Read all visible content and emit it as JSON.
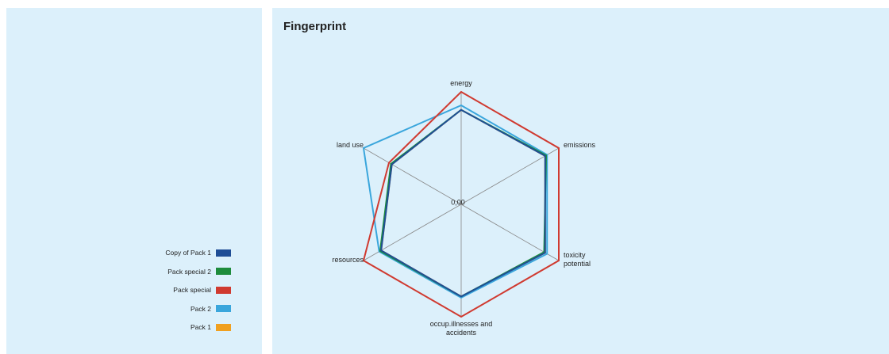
{
  "chart_data": {
    "type": "radar",
    "title": "Fingerprint",
    "categories": [
      "energy",
      "emissions",
      "toxicity potential",
      "occup.illnesses and accidents",
      "resources",
      "land use"
    ],
    "rlim": [
      0,
      1
    ],
    "rticks": [
      {
        "value": 0,
        "label": "0,00"
      }
    ],
    "series": [
      {
        "name": "Copy of Pack 1",
        "color": "#1f4e96",
        "values": [
          0.84,
          0.86,
          0.86,
          0.82,
          0.82,
          0.71
        ]
      },
      {
        "name": "Pack special 2",
        "color": "#1e8c3c",
        "values": [
          0.84,
          0.87,
          0.85,
          0.82,
          0.83,
          0.72
        ]
      },
      {
        "name": "Pack special",
        "color": "#d03a30",
        "values": [
          1,
          1,
          1,
          1,
          1,
          0.74
        ]
      },
      {
        "name": "Pack 2",
        "color": "#3aa6dc",
        "values": [
          0.88,
          0.88,
          0.88,
          0.83,
          0.84,
          1
        ]
      },
      {
        "name": "Pack 1",
        "color": "#f0a020",
        "values": [
          0.84,
          0.86,
          0.86,
          0.82,
          0.82,
          0.71
        ]
      }
    ]
  }
}
